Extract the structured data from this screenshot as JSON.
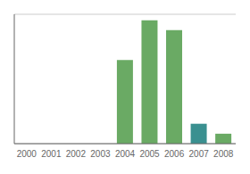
{
  "chart_data": {
    "type": "bar",
    "categories": [
      "2000",
      "2001",
      "2002",
      "2003",
      "2004",
      "2005",
      "2006",
      "2007",
      "2008"
    ],
    "values": [
      0,
      0,
      0,
      0,
      42,
      62,
      57,
      10,
      5
    ],
    "colors": [
      "#6aaa64",
      "#6aaa64",
      "#6aaa64",
      "#6aaa64",
      "#6aaa64",
      "#6aaa64",
      "#6aaa64",
      "#3a9090",
      "#6aaa64"
    ],
    "ylim": [
      0,
      65
    ],
    "yticks": [
      0,
      20,
      40,
      60
    ],
    "grid": true,
    "tick_labels": "x"
  }
}
